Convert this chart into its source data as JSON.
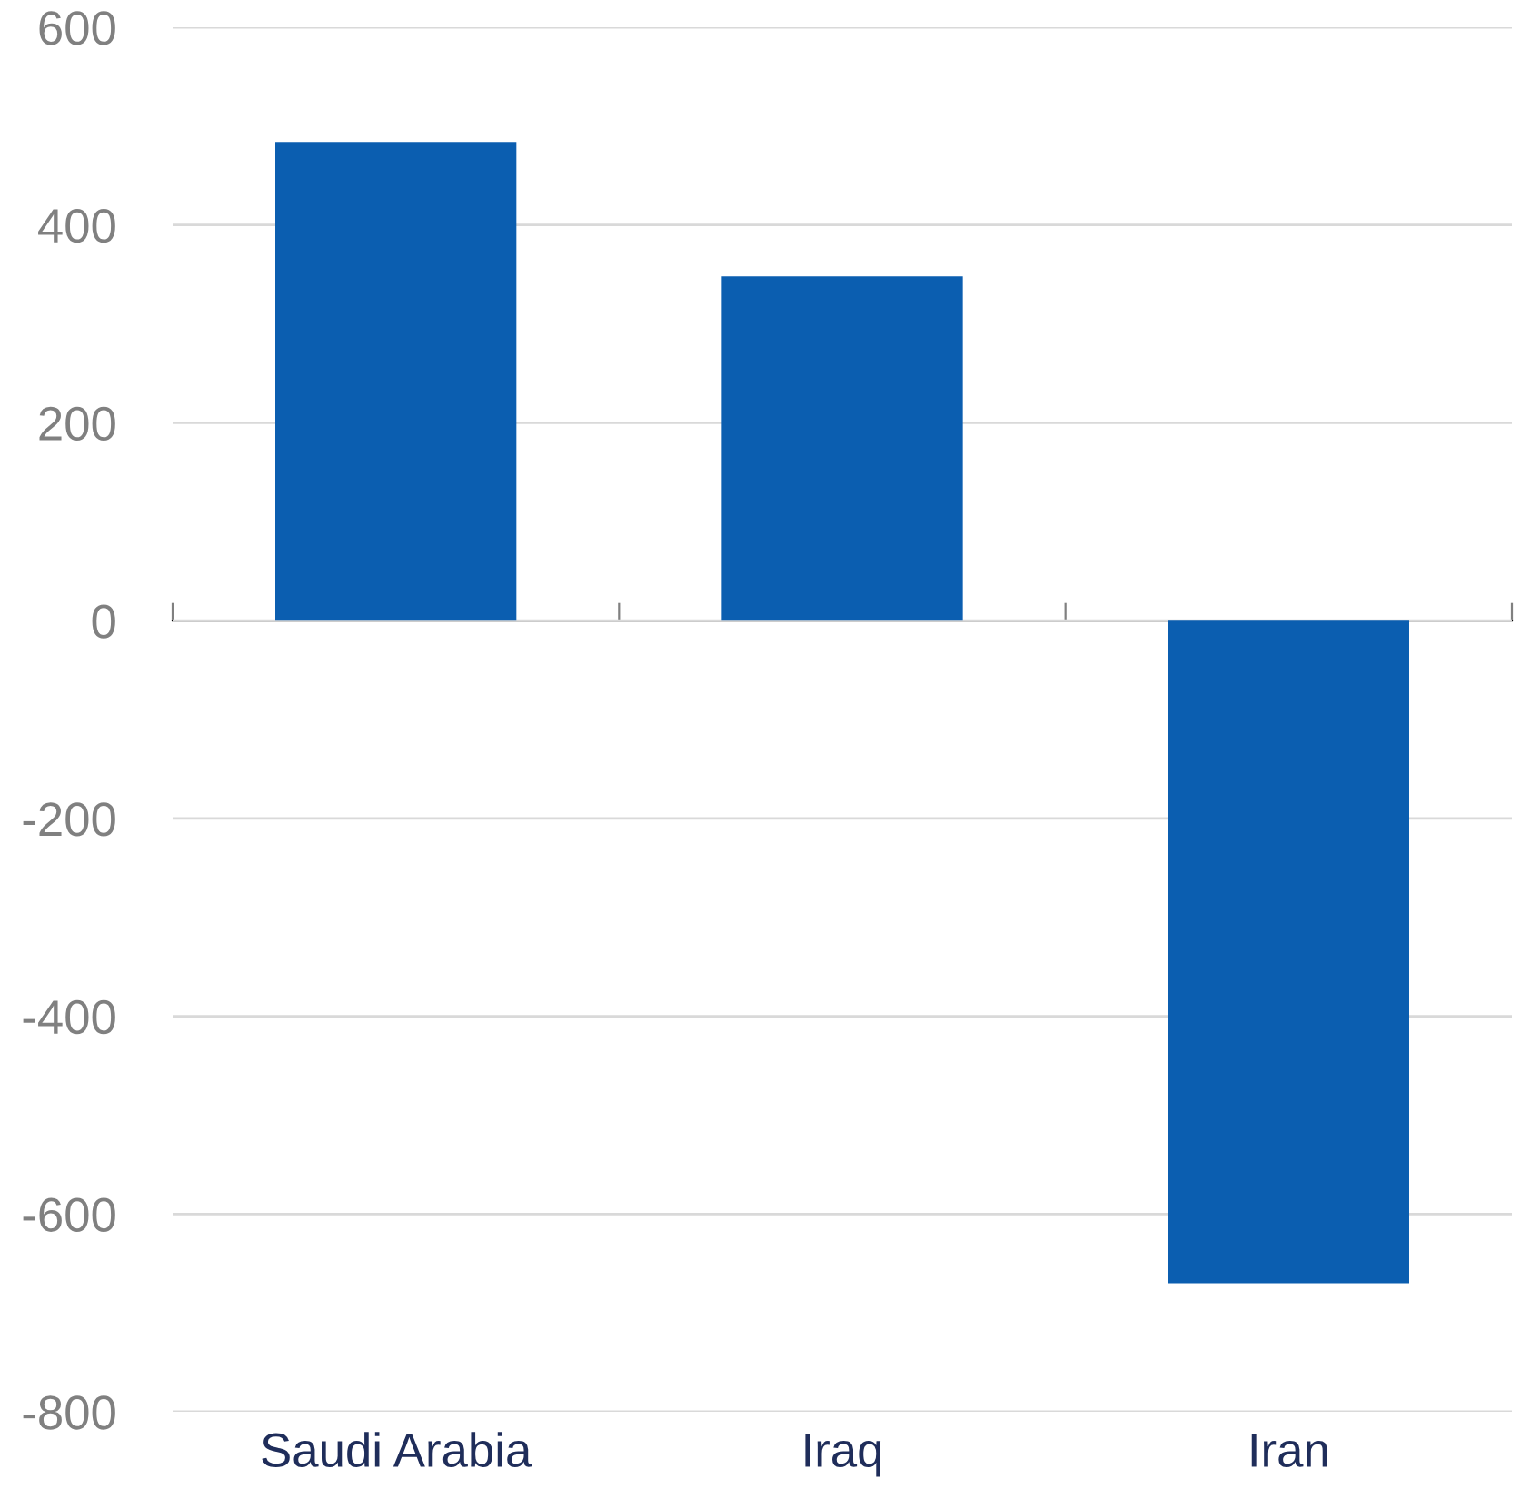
{
  "chart_data": {
    "type": "bar",
    "categories": [
      "Saudi Arabia",
      "Iraq",
      "Iran"
    ],
    "values": [
      484,
      348,
      -670
    ],
    "color": "#0b5eb0",
    "ylim": [
      -800,
      600
    ],
    "yticks": [
      -800,
      -600,
      -400,
      -200,
      0,
      200,
      400,
      600
    ],
    "grid": "y"
  }
}
